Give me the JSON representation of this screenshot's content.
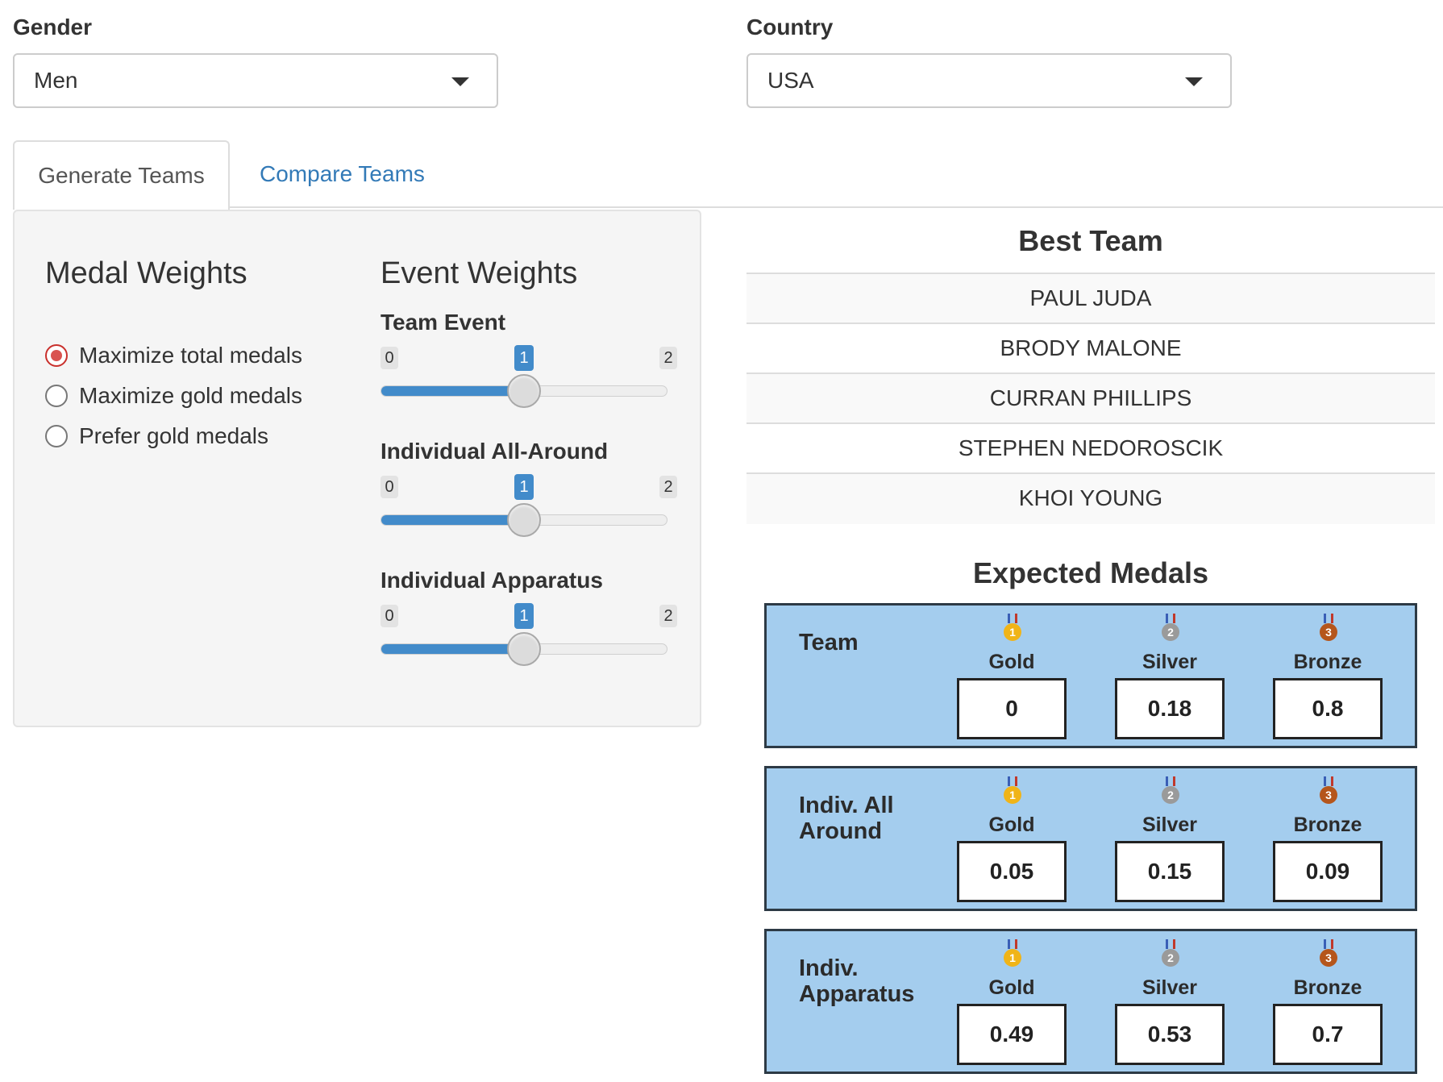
{
  "gender": {
    "label": "Gender",
    "selected": "Men"
  },
  "country": {
    "label": "Country",
    "selected": "USA"
  },
  "tabs": [
    {
      "label": "Generate Teams",
      "active": true
    },
    {
      "label": "Compare Teams",
      "active": false
    }
  ],
  "medal_weights": {
    "title": "Medal Weights",
    "options": [
      {
        "label": "Maximize total medals",
        "checked": true
      },
      {
        "label": "Maximize gold medals",
        "checked": false
      },
      {
        "label": "Prefer gold medals",
        "checked": false
      }
    ]
  },
  "event_weights": {
    "title": "Event Weights",
    "sliders": [
      {
        "label": "Team Event",
        "min": 0,
        "max": 2,
        "value": 1,
        "min_label": "0",
        "max_label": "2",
        "value_label": "1"
      },
      {
        "label": "Individual All-Around",
        "min": 0,
        "max": 2,
        "value": 1,
        "min_label": "0",
        "max_label": "2",
        "value_label": "1"
      },
      {
        "label": "Individual Apparatus",
        "min": 0,
        "max": 2,
        "value": 1,
        "min_label": "0",
        "max_label": "2",
        "value_label": "1"
      }
    ]
  },
  "best_team": {
    "title": "Best Team",
    "members": [
      "PAUL JUDA",
      "BRODY MALONE",
      "CURRAN PHILLIPS",
      "STEPHEN NEDOROSCIK",
      "KHOI YOUNG"
    ]
  },
  "expected_medals": {
    "title": "Expected Medals",
    "medal_labels": [
      "Gold",
      "Silver",
      "Bronze"
    ],
    "medal_numbers": [
      "1",
      "2",
      "3"
    ],
    "colors": {
      "gold": "#f0b418",
      "silver": "#9a9a9a",
      "bronze": "#b5561c",
      "box_bg": "#a4cdee"
    },
    "rows": [
      {
        "label": "Team",
        "values": [
          "0",
          "0.18",
          "0.8"
        ]
      },
      {
        "label": "Indiv. All Around",
        "values": [
          "0.05",
          "0.15",
          "0.09"
        ]
      },
      {
        "label": "Indiv. Apparatus",
        "values": [
          "0.49",
          "0.53",
          "0.7"
        ]
      }
    ]
  }
}
